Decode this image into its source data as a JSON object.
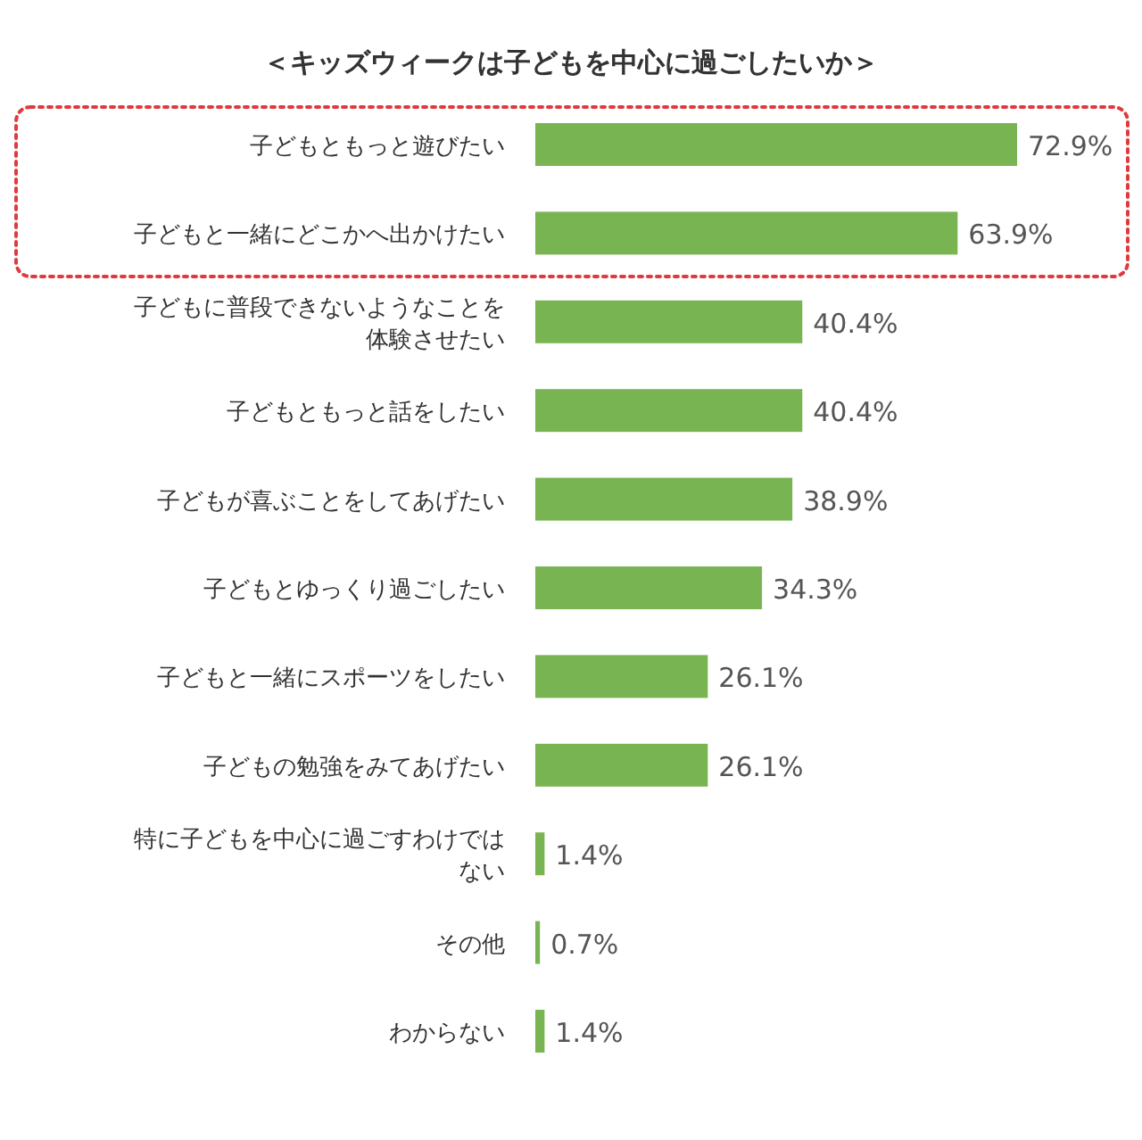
{
  "chart_data": {
    "type": "bar",
    "orientation": "horizontal",
    "title": "＜キッズウィークは子どもを中心に過ごしたいか＞",
    "categories": [
      "子どもともっと遊びたい",
      "子どもと一緒にどこかへ出かけたい",
      "子どもに普段できないようなことを体験させたい",
      "子どもともっと話をしたい",
      "子どもが喜ぶことをしてあげたい",
      "子どもとゆっくり過ごしたい",
      "子どもと一緒にスポーツをしたい",
      "子どもの勉強をみてあげたい",
      "特に子どもを中心に過ごすわけではない",
      "その他",
      "わからない"
    ],
    "values": [
      72.9,
      63.9,
      40.4,
      40.4,
      38.9,
      34.3,
      26.1,
      26.1,
      1.4,
      0.7,
      1.4
    ],
    "value_labels": [
      "72.9%",
      "63.9%",
      "40.4%",
      "40.4%",
      "38.9%",
      "34.3%",
      "26.1%",
      "26.1%",
      "1.4%",
      "0.7%",
      "1.4%"
    ],
    "color": "#79b452"
  }
}
